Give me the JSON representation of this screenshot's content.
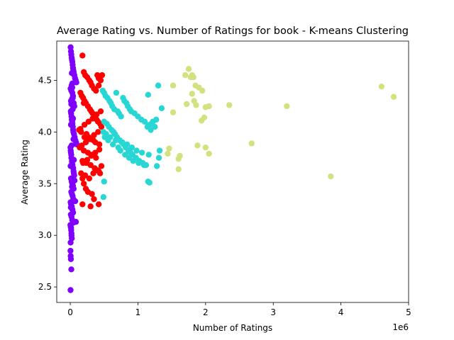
{
  "chart_data": {
    "type": "scatter",
    "title": "Average Rating vs. Number of Ratings for book - K-means Clustering",
    "xlabel": "Number of Ratings",
    "ylabel": "Average Rating",
    "x_offset_label": "1e6",
    "x_scale": 1000000,
    "xlim": [
      -200000,
      5000000
    ],
    "ylim": [
      2.35,
      4.88
    ],
    "x_ticks": [
      0,
      1000000,
      2000000,
      3000000,
      4000000,
      5000000
    ],
    "x_tick_labels": [
      "0",
      "1",
      "2",
      "3",
      "4",
      "5"
    ],
    "y_ticks": [
      2.5,
      3.0,
      3.5,
      4.0,
      4.5
    ],
    "y_tick_labels": [
      "2.5",
      "3.0",
      "3.5",
      "4.0",
      "4.5"
    ],
    "grid": false,
    "legend": "none",
    "clusters": [
      {
        "color": "#8000ff",
        "x": [
          5000,
          10000,
          15000,
          20000,
          25000,
          30000,
          35000,
          40000,
          45000,
          50000,
          60000,
          70000,
          80000,
          90000,
          20000,
          5000,
          15000,
          30000,
          40000,
          25000,
          10000,
          50000,
          60000,
          35000,
          8000,
          12000,
          18000,
          22000,
          28000,
          32000,
          38000,
          42000,
          46000,
          55000,
          65000,
          75000,
          85000,
          95000,
          3000,
          6000,
          9000,
          14000,
          16000,
          24000,
          27000,
          33000,
          44000,
          48000,
          52000,
          58000,
          10000,
          20000,
          30000,
          40000,
          50000,
          15000,
          25000,
          35000,
          45000,
          5000,
          12000,
          22000,
          32000,
          42000,
          8000,
          18000,
          28000,
          38000,
          2000,
          7000,
          13000,
          17000,
          23000,
          29000,
          37000,
          41000,
          47000,
          53000,
          63000,
          73000,
          83000,
          30000,
          15000,
          10000,
          20000,
          5000,
          25000,
          8000,
          12000,
          18000,
          22000,
          5000,
          3000,
          6000,
          9000,
          15000,
          4000
        ],
        "y": [
          4.82,
          4.78,
          4.75,
          4.72,
          4.7,
          4.68,
          4.65,
          4.62,
          4.6,
          4.58,
          4.55,
          4.52,
          4.5,
          4.48,
          4.45,
          4.42,
          4.4,
          4.38,
          4.35,
          4.32,
          4.3,
          4.28,
          4.25,
          4.22,
          4.2,
          4.18,
          4.15,
          4.12,
          4.1,
          4.08,
          4.05,
          4.02,
          4.0,
          3.98,
          3.95,
          3.92,
          3.9,
          3.88,
          3.85,
          3.82,
          3.8,
          3.78,
          3.75,
          3.72,
          3.7,
          3.68,
          3.65,
          3.62,
          3.6,
          3.58,
          3.55,
          3.52,
          3.5,
          3.48,
          3.45,
          3.42,
          3.4,
          3.38,
          3.35,
          3.32,
          3.3,
          3.28,
          3.25,
          3.22,
          3.2,
          3.18,
          3.15,
          3.12,
          3.1,
          3.08,
          3.05,
          3.02,
          4.57,
          4.43,
          4.33,
          4.13,
          3.93,
          3.73,
          3.53,
          3.33,
          3.13,
          4.47,
          4.27,
          4.07,
          3.87,
          3.67,
          3.47,
          3.27,
          3.07,
          3.0,
          2.97,
          2.93,
          2.85,
          2.8,
          2.77,
          2.67,
          2.47
        ]
      },
      {
        "color": "#ff0000",
        "x": [
          180000,
          200000,
          220000,
          250000,
          280000,
          300000,
          320000,
          350000,
          380000,
          400000,
          420000,
          450000,
          470000,
          150000,
          170000,
          190000,
          210000,
          230000,
          260000,
          290000,
          310000,
          330000,
          360000,
          390000,
          410000,
          440000,
          460000,
          130000,
          160000,
          240000,
          270000,
          340000,
          370000,
          430000,
          140000,
          200000,
          260000,
          320000,
          380000,
          180000,
          240000,
          300000,
          360000,
          420000,
          160000,
          220000,
          280000,
          340000,
          400000,
          460000,
          190000,
          250000,
          310000,
          370000,
          430000,
          170000,
          230000,
          290000,
          350000,
          410000,
          150000,
          210000,
          270000,
          330000,
          390000,
          450000,
          200000,
          230000,
          320000,
          260000,
          180000,
          420000,
          350000,
          440000,
          420000,
          200000,
          210000,
          300000,
          180000
        ],
        "y": [
          4.74,
          4.58,
          4.55,
          4.53,
          4.5,
          4.48,
          4.45,
          4.42,
          4.4,
          4.55,
          4.52,
          4.5,
          4.55,
          4.38,
          4.35,
          4.33,
          4.3,
          4.28,
          4.25,
          4.22,
          4.2,
          4.18,
          4.15,
          4.12,
          4.1,
          4.08,
          4.05,
          4.02,
          4.0,
          3.98,
          3.95,
          3.92,
          3.9,
          3.88,
          3.85,
          3.82,
          3.8,
          3.78,
          3.75,
          3.72,
          3.7,
          3.68,
          3.65,
          3.62,
          3.6,
          3.58,
          3.55,
          3.6,
          3.63,
          3.67,
          3.7,
          3.73,
          3.77,
          3.8,
          3.83,
          3.87,
          3.9,
          3.93,
          3.97,
          4.0,
          4.03,
          4.07,
          4.1,
          4.13,
          4.17,
          4.2,
          3.5,
          3.45,
          3.4,
          3.42,
          3.55,
          3.3,
          3.35,
          3.6,
          4.45,
          4.28,
          3.95,
          3.28,
          3.3
        ]
      },
      {
        "color": "#28d7d4",
        "x": [
          480000,
          500000,
          520000,
          550000,
          580000,
          600000,
          620000,
          650000,
          680000,
          700000,
          720000,
          750000,
          780000,
          800000,
          830000,
          850000,
          880000,
          900000,
          950000,
          1000000,
          1050000,
          1100000,
          1150000,
          1200000,
          1250000,
          1300000,
          1350000,
          500000,
          540000,
          570000,
          610000,
          640000,
          660000,
          690000,
          730000,
          760000,
          790000,
          820000,
          860000,
          890000,
          920000,
          970000,
          1020000,
          1070000,
          1120000,
          1170000,
          1220000,
          1270000,
          1320000,
          510000,
          560000,
          630000,
          710000,
          740000,
          810000,
          870000,
          930000,
          1010000,
          1090000,
          1140000,
          1190000,
          490000,
          530000,
          590000,
          670000,
          770000,
          840000,
          910000,
          980000,
          1060000,
          1160000,
          1310000,
          1150000,
          1170000,
          500000,
          490000,
          1280000
        ],
        "y": [
          4.4,
          4.38,
          4.35,
          4.33,
          4.3,
          4.28,
          4.25,
          4.22,
          4.38,
          4.2,
          4.18,
          4.15,
          4.33,
          4.3,
          4.28,
          4.25,
          4.22,
          4.2,
          4.18,
          4.15,
          4.12,
          4.1,
          4.36,
          4.08,
          4.05,
          4.45,
          4.23,
          4.1,
          4.08,
          4.05,
          4.02,
          4.0,
          3.98,
          3.95,
          3.92,
          3.9,
          3.88,
          3.85,
          3.82,
          3.8,
          3.78,
          3.75,
          3.72,
          3.7,
          3.68,
          4.07,
          4.1,
          4.12,
          3.82,
          3.95,
          3.92,
          3.88,
          3.85,
          3.82,
          3.78,
          3.75,
          3.72,
          3.7,
          3.68,
          4.05,
          4.02,
          4.0,
          3.98,
          3.95,
          3.92,
          3.9,
          3.88,
          3.85,
          3.82,
          3.8,
          3.78,
          3.75,
          3.52,
          3.51,
          3.52,
          3.37,
          3.67
        ]
      },
      {
        "color": "#d4e17e",
        "x": [
          1700000,
          1750000,
          1800000,
          1780000,
          1820000,
          1850000,
          1900000,
          1950000,
          1520000,
          1800000,
          1830000,
          1720000,
          1980000,
          2050000,
          2000000,
          2350000,
          1520000,
          1460000,
          1880000,
          2000000,
          1440000,
          1620000,
          1600000,
          1600000,
          2050000,
          2680000,
          3200000,
          3850000,
          4600000,
          4780000,
          1940000,
          1860000
        ],
        "y": [
          4.55,
          4.61,
          4.55,
          4.53,
          4.53,
          4.45,
          4.43,
          4.4,
          4.45,
          4.37,
          4.3,
          4.27,
          4.14,
          4.25,
          4.24,
          4.26,
          4.19,
          3.84,
          3.87,
          3.85,
          3.79,
          3.77,
          3.74,
          3.64,
          3.79,
          3.89,
          4.25,
          3.57,
          4.44,
          4.34,
          4.11,
          4.26
        ]
      }
    ]
  }
}
